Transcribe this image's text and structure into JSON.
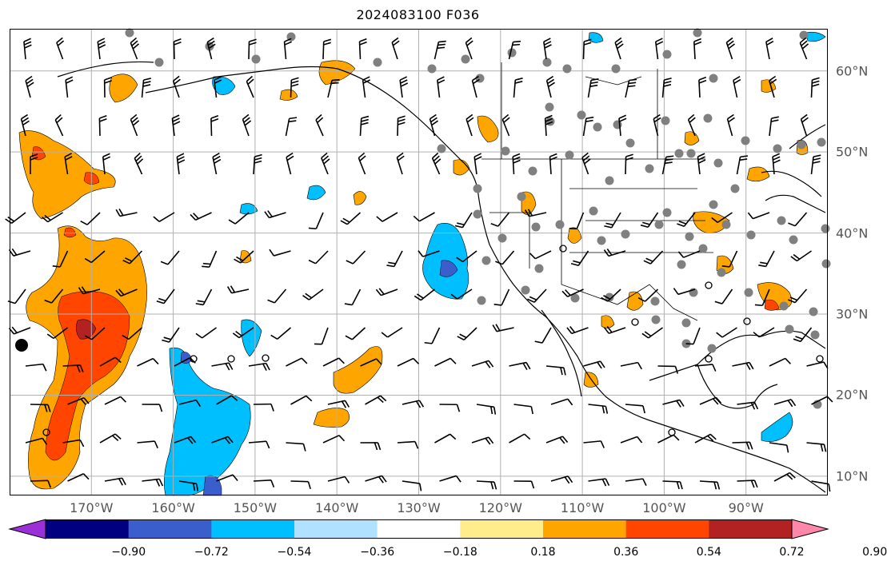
{
  "title": "2024083100 F036",
  "map": {
    "region": "Eastern North Pacific / North America",
    "lon_range": [
      -180,
      -80
    ],
    "lat_range": [
      8,
      65
    ],
    "grid": true,
    "lon_labels": [
      "170°W",
      "160°W",
      "150°W",
      "140°W",
      "130°W",
      "120°W",
      "110°W",
      "100°W",
      "90°W"
    ],
    "lat_labels": [
      "60°N",
      "50°N",
      "40°N",
      "30°N",
      "20°N",
      "10°N"
    ],
    "overlays": [
      "shaded anomaly field",
      "wind barbs",
      "station dots",
      "coastlines",
      "borders"
    ]
  },
  "colorbar": {
    "ticks": [
      "−0.90",
      "−0.72",
      "−0.54",
      "−0.36",
      "−0.18",
      "0.18",
      "0.36",
      "0.54",
      "0.72",
      "0.90"
    ],
    "colors": [
      "#9b30d9",
      "#000080",
      "#3a5fcd",
      "#00bfff",
      "#b0e2ff",
      "#ffffff",
      "#ffec8b",
      "#ffa500",
      "#ff4500",
      "#b22222",
      "#ff88aa"
    ],
    "extend": "both"
  },
  "colors": {
    "orange": "#ffa500",
    "red_orange": "#ff4500",
    "dark_red": "#b22222",
    "light_blue": "#b0e2ff",
    "deep_sky_blue": "#00bfff",
    "royal_blue": "#3a5fcd",
    "station_dot": "#808080",
    "grid": "#b0b0b0"
  }
}
